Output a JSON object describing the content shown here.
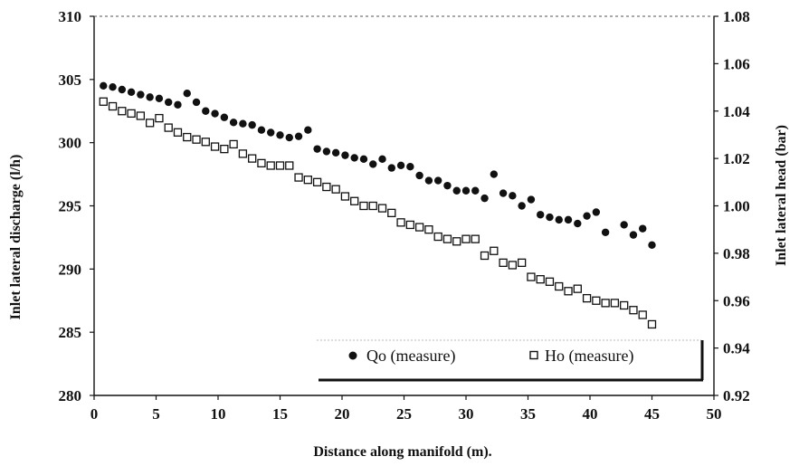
{
  "chart_data": {
    "type": "scatter",
    "xlabel": "Distance along manifold (m).",
    "ylabel_left": "Inlet lateral discharge  (l/h)",
    "ylabel_right": "Inlet lateral head (bar)",
    "xlim": [
      0,
      50
    ],
    "ylim_left": [
      280,
      310
    ],
    "ylim_right": [
      0.92,
      1.08
    ],
    "x_ticks": [
      "0",
      "5",
      "10",
      "15",
      "20",
      "25",
      "30",
      "35",
      "40",
      "45",
      "50"
    ],
    "y_ticks_left": [
      "280",
      "285",
      "290",
      "295",
      "300",
      "305",
      "310"
    ],
    "y_ticks_right": [
      "0.92",
      "0.94",
      "0.96",
      "0.98",
      "1.00",
      "1.02",
      "1.04",
      "1.06",
      "1.08"
    ],
    "grid": false,
    "legend_position": "bottom-right",
    "series": [
      {
        "name": "Qo (measure)",
        "axis": "left",
        "marker": "filled-circle",
        "color": "#111111",
        "x": [
          0.75,
          1.5,
          2.25,
          3,
          3.75,
          4.5,
          5.25,
          6,
          6.75,
          7.5,
          8.25,
          9,
          9.75,
          10.5,
          11.25,
          12,
          12.75,
          13.5,
          14.25,
          15,
          15.75,
          16.5,
          17.25,
          18,
          18.75,
          19.5,
          20.25,
          21,
          21.75,
          22.5,
          23.25,
          24,
          24.75,
          25.5,
          26.25,
          27,
          27.75,
          28.5,
          29.25,
          30,
          30.75,
          31.5,
          32.25,
          33,
          33.75,
          34.5,
          35.25,
          36,
          36.75,
          37.5,
          38.25,
          39,
          39.75,
          40.5,
          41.25,
          42.75,
          43.5,
          44.25,
          45
        ],
        "y": [
          304.5,
          304.4,
          304.2,
          304.0,
          303.8,
          303.6,
          303.5,
          303.2,
          303.0,
          303.9,
          303.2,
          302.5,
          302.3,
          302.0,
          301.6,
          301.5,
          301.4,
          301.0,
          300.8,
          300.6,
          300.4,
          300.5,
          301.0,
          299.5,
          299.3,
          299.2,
          299.0,
          298.8,
          298.7,
          298.3,
          298.7,
          298.0,
          298.2,
          298.1,
          297.4,
          297.0,
          297.0,
          296.6,
          296.2,
          296.2,
          296.2,
          295.6,
          297.5,
          296.0,
          295.8,
          295.0,
          295.5,
          294.3,
          294.1,
          293.9,
          293.9,
          293.6,
          294.2,
          294.5,
          292.9,
          293.5,
          292.7,
          293.2,
          291.9
        ]
      },
      {
        "name": "Ho (measure)",
        "axis": "right",
        "marker": "open-square",
        "color": "#111111",
        "x": [
          0.75,
          1.5,
          2.25,
          3,
          3.75,
          4.5,
          5.25,
          6,
          6.75,
          7.5,
          8.25,
          9,
          9.75,
          10.5,
          11.25,
          12,
          12.75,
          13.5,
          14.25,
          15,
          15.75,
          16.5,
          17.25,
          18,
          18.75,
          19.5,
          20.25,
          21,
          21.75,
          22.5,
          23.25,
          24,
          24.75,
          25.5,
          26.25,
          27,
          27.75,
          28.5,
          29.25,
          30,
          30.75,
          31.5,
          32.25,
          33,
          33.75,
          34.5,
          35.25,
          36,
          36.75,
          37.5,
          38.25,
          39,
          39.75,
          40.5,
          41.25,
          42,
          42.75,
          43.5,
          44.25,
          45
        ],
        "y": [
          1.044,
          1.042,
          1.04,
          1.039,
          1.038,
          1.035,
          1.037,
          1.033,
          1.031,
          1.029,
          1.028,
          1.027,
          1.025,
          1.024,
          1.026,
          1.022,
          1.02,
          1.018,
          1.017,
          1.017,
          1.017,
          1.012,
          1.011,
          1.01,
          1.008,
          1.007,
          1.004,
          1.002,
          1.0,
          1.0,
          0.999,
          0.997,
          0.993,
          0.992,
          0.991,
          0.99,
          0.987,
          0.986,
          0.985,
          0.986,
          0.986,
          0.979,
          0.981,
          0.976,
          0.975,
          0.976,
          0.97,
          0.969,
          0.968,
          0.966,
          0.964,
          0.965,
          0.961,
          0.96,
          0.959,
          0.959,
          0.958,
          0.956,
          0.954,
          0.95
        ]
      }
    ]
  }
}
